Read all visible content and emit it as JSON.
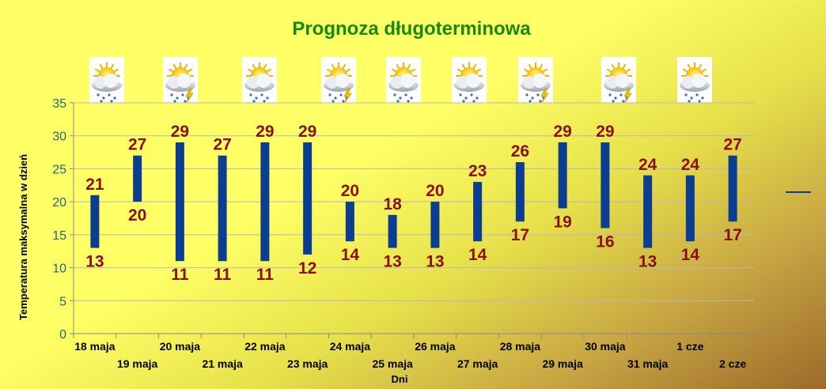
{
  "chart_data": {
    "type": "bar",
    "subtype": "floating-range",
    "title": "Prognoza długoterminowa",
    "xlabel": "Dni",
    "ylabel": "Temperatura maksymalna w dzień",
    "ylim": [
      0,
      35
    ],
    "yticks": [
      0,
      5,
      10,
      15,
      20,
      25,
      30,
      35
    ],
    "grid": true,
    "categories": [
      "18 maja",
      "19 maja",
      "20 maja",
      "21 maja",
      "22 maja",
      "23 maja",
      "24 maja",
      "25 maja",
      "26 maja",
      "27 maja",
      "28 maja",
      "29 maja",
      "30 maja",
      "31 maja",
      "1 cze",
      "2 cze"
    ],
    "series": [
      {
        "values_low": [
          13,
          20,
          11,
          11,
          11,
          12,
          14,
          13,
          13,
          14,
          17,
          19,
          16,
          13,
          14,
          17
        ],
        "values_high": [
          21,
          27,
          29,
          27,
          29,
          29,
          20,
          18,
          20,
          23,
          26,
          29,
          29,
          24,
          24,
          27
        ],
        "color": "#0b3d91"
      }
    ],
    "label_color": "#8b1010",
    "axis_text_color": "#1a6b7a",
    "title_color": "#168a16",
    "legend": {
      "position": "right",
      "color": "#0b3d91"
    },
    "weather_icons": [
      {
        "icon": "cloud-rain-sun-icon"
      },
      {
        "icon": "cloud-storm-sun-icon"
      },
      {
        "icon": "cloud-rain-sun-icon"
      },
      {
        "icon": "cloud-storm-sun-icon"
      },
      {
        "icon": "cloud-rain-sun-icon"
      },
      {
        "icon": "cloud-rain-sun-icon"
      },
      {
        "icon": "cloud-storm-sun-icon"
      },
      {
        "icon": "cloud-storm-sun-icon"
      },
      {
        "icon": "cloud-rain-sun-icon"
      }
    ]
  }
}
